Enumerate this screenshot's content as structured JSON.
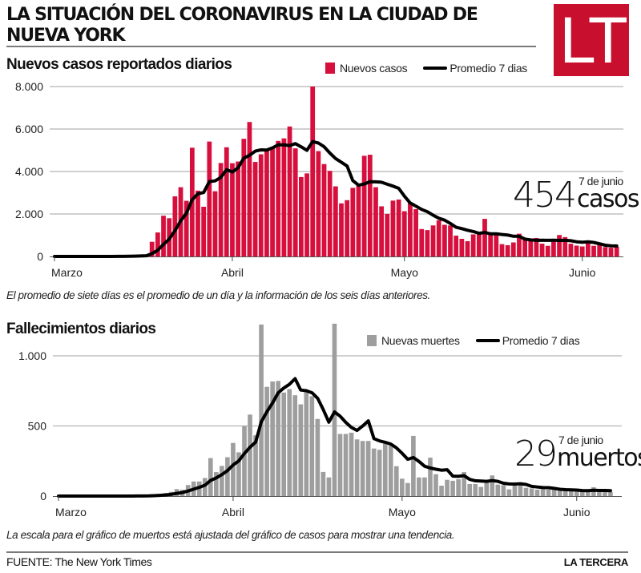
{
  "header": {
    "title": "LA SITUACIÓN DEL CORONAVIRUS EN LA CIUDAD DE NUEVA YORK",
    "logo_text": "LT"
  },
  "colors": {
    "brand_red": "#c8102e",
    "cases_bar": "#d60f3d",
    "deaths_bar": "#9e9e9e",
    "avg_line": "#000000",
    "grid": "#b5b5b5"
  },
  "cases": {
    "section_title": "Nuevos casos reportados diarios",
    "legend_bar": "Nuevos casos",
    "legend_line": "Promedio 7 dias",
    "callout_number": "454",
    "callout_unit": "casos",
    "callout_date": "7 de junio",
    "note": "El promedio de siete días es el promedio de un día y la información de los seis días anteriores."
  },
  "deaths": {
    "section_title": "Fallecimientos diarios",
    "legend_bar": "Nuevas muertes",
    "legend_line": "Promedio 7 dias",
    "callout_number": "29",
    "callout_unit": "muertos",
    "callout_date": "7 de junio",
    "note": "La escala para el gráfico de muertos está ajustada del gráfico de casos para mostrar una tendencia."
  },
  "footer": {
    "source": "FUENTE: The New York Times",
    "brand": "LA TERCERA"
  },
  "chart_data": [
    {
      "type": "bar",
      "title": "Nuevos casos reportados diarios",
      "x_start": "1 de marzo",
      "x_unit": "day",
      "x_ticks": [
        {
          "day": 0,
          "label": "Marzo"
        },
        {
          "day": 31,
          "label": "Abril"
        },
        {
          "day": 61,
          "label": "Mayo"
        },
        {
          "day": 92,
          "label": "Junio"
        }
      ],
      "ylim": [
        0,
        8000
      ],
      "y_ticks": [
        {
          "value": 0,
          "label": "0"
        },
        {
          "value": 2000,
          "label": "2.000"
        },
        {
          "value": 4000,
          "label": "4.000"
        },
        {
          "value": 6000,
          "label": "6.000"
        },
        {
          "value": 8000,
          "label": "8.000"
        }
      ],
      "grid": true,
      "legend": "top-right",
      "series": [
        {
          "name": "Nuevos casos",
          "kind": "bar",
          "values": [
            0,
            0,
            0,
            0,
            0,
            0,
            0,
            0,
            0,
            0,
            5,
            10,
            15,
            25,
            40,
            60,
            90,
            690,
            1130,
            1920,
            1800,
            2830,
            3260,
            2620,
            5120,
            3100,
            2340,
            5410,
            3070,
            4400,
            5140,
            4390,
            4470,
            5540,
            6330,
            4450,
            4810,
            5075,
            5110,
            5440,
            5560,
            6120,
            5090,
            3740,
            3910,
            8000,
            4960,
            4350,
            4030,
            3300,
            2500,
            2650,
            3230,
            3420,
            4740,
            4790,
            3260,
            2360,
            2000,
            2630,
            2680,
            2130,
            2550,
            2230,
            1290,
            1240,
            1460,
            1700,
            1490,
            1460,
            980,
            830,
            720,
            1040,
            1100,
            1770,
            1010,
            1010,
            580,
            530,
            660,
            1070,
            870,
            730,
            870,
            600,
            500,
            690,
            1010,
            910,
            600,
            510,
            470,
            630,
            500,
            560,
            440,
            410,
            454
          ]
        },
        {
          "name": "Promedio 7 dias",
          "kind": "line",
          "values": [
            0,
            0,
            0,
            0,
            0,
            0,
            0,
            0,
            0,
            0,
            1,
            2,
            4,
            8,
            14,
            22,
            35,
            133,
            293,
            565,
            819,
            1217,
            1674,
            2036,
            2669,
            2950,
            3010,
            3526,
            3560,
            3723,
            4083,
            3979,
            4174,
            4631,
            4763,
            4960,
            5019,
            5009,
            5112,
            5251,
            5254,
            5224,
            5315,
            5162,
            4996,
            5409,
            5340,
            5167,
            4869,
            4613,
            4436,
            4256,
            3574,
            3354,
            3410,
            3519,
            3513,
            3493,
            3400,
            3314,
            3209,
            2836,
            2516,
            2369,
            2216,
            2107,
            1940,
            1800,
            1709,
            1553,
            1374,
            1309,
            1234,
            1174,
            1089,
            1129,
            1064,
            1069,
            1033,
            1006,
            951,
            947,
            819,
            779,
            759,
            761,
            757,
            761,
            753,
            759,
            740,
            689,
            670,
            689,
            661,
            597,
            530,
            503,
            495
          ]
        }
      ]
    },
    {
      "type": "bar",
      "title": "Fallecimientos diarios",
      "x_start": "1 de marzo",
      "x_unit": "day",
      "x_ticks": [
        {
          "day": 0,
          "label": "Marzo"
        },
        {
          "day": 31,
          "label": "Abril"
        },
        {
          "day": 61,
          "label": "Mayo"
        },
        {
          "day": 92,
          "label": "Junio"
        }
      ],
      "ylim": [
        0,
        1000
      ],
      "y_ticks": [
        {
          "value": 0,
          "label": "0"
        },
        {
          "value": 500,
          "label": "500"
        },
        {
          "value": 1000,
          "label": "1.000"
        }
      ],
      "grid": true,
      "legend": "top-right",
      "series": [
        {
          "name": "Nuevas muertes",
          "kind": "bar",
          "values": [
            0,
            0,
            0,
            0,
            0,
            0,
            0,
            0,
            0,
            0,
            0,
            0,
            0,
            0,
            2,
            3,
            5,
            10,
            15,
            22,
            30,
            50,
            45,
            79,
            104,
            104,
            129,
            271,
            171,
            215,
            277,
            379,
            312,
            500,
            581,
            433,
            1223,
            779,
            817,
            821,
            738,
            763,
            719,
            654,
            750,
            712,
            550,
            172,
            133,
            1229,
            443,
            443,
            452,
            404,
            393,
            393,
            339,
            330,
            373,
            362,
            213,
            124,
            93,
            429,
            133,
            133,
            274,
            156,
            74,
            116,
            109,
            120,
            171,
            86,
            86,
            65,
            97,
            147,
            82,
            78,
            48,
            82,
            82,
            59,
            55,
            46,
            51,
            46,
            46,
            38,
            40,
            40,
            38,
            30,
            40,
            63,
            29,
            40,
            29
          ]
        },
        {
          "name": "Promedio 7 dias",
          "kind": "line",
          "values": [
            0,
            0,
            0,
            0,
            0,
            0,
            0,
            0,
            0,
            0,
            0,
            0,
            0,
            0,
            0.3,
            0.7,
            1.4,
            2.9,
            5,
            8.1,
            12.4,
            19.3,
            25.3,
            35.9,
            49.3,
            62,
            77.3,
            111.7,
            129,
            153.3,
            181.6,
            220.9,
            250.6,
            303.6,
            347.9,
            385.3,
            529.3,
            601,
            663.6,
            736.3,
            770.3,
            796.3,
            837.1,
            755.9,
            751.7,
            736.7,
            698,
            617.1,
            527.1,
            600,
            569.9,
            526,
            488.9,
            468,
            499.6,
            536.7,
            409.6,
            393.4,
            383.4,
            370.6,
            343.3,
            304.9,
            262,
            274.9,
            246.7,
            212.4,
            199.9,
            191.7,
            184.6,
            187.9,
            142.1,
            140.3,
            145.7,
            118.9,
            108.9,
            107.6,
            104.9,
            110.3,
            104.9,
            91.6,
            86.1,
            85.6,
            88,
            82.6,
            69.4,
            64.3,
            60.4,
            60.1,
            55,
            48.7,
            46,
            43.9,
            42.7,
            39.7,
            38.9,
            41.3,
            40,
            40,
            38.4
          ]
        }
      ]
    }
  ]
}
